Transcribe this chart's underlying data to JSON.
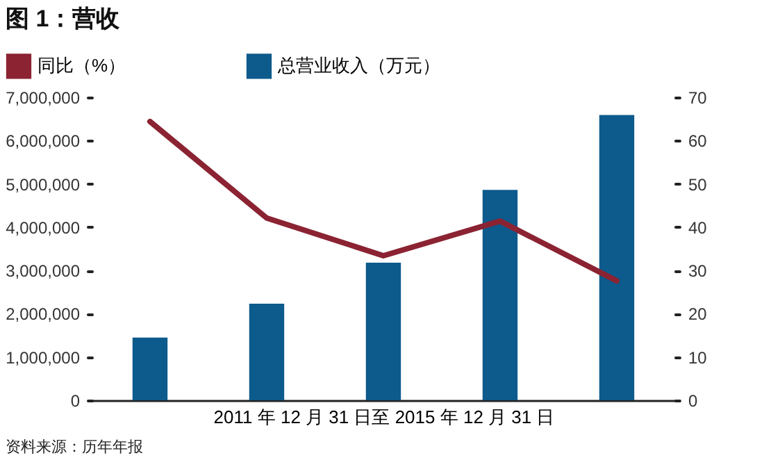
{
  "chart_data": {
    "type": "bar",
    "title": "图 1：营收",
    "xlabel": "2011 年 12 月 31 日至 2015 年 12 月 31 日",
    "categories": [
      null,
      null,
      null,
      null,
      null
    ],
    "series": [
      {
        "name": "同比（%）",
        "type": "line",
        "axis": "y2",
        "color": "#8b2332",
        "values": [
          64.4,
          42.1,
          33.4,
          41.4,
          27.6
        ]
      },
      {
        "name": "总营业收入（万元）",
        "color": "#0d5a8c",
        "values": [
          1450000,
          2230000,
          3180000,
          4860000,
          6590000
        ]
      }
    ],
    "ylim": [
      0,
      7000000
    ],
    "yticks": [
      0,
      {
        "value": 1000000,
        "label": "1,000,000"
      },
      {
        "value": 2000000,
        "label": "2,000,000"
      },
      {
        "value": 3000000,
        "label": "3,000,000"
      },
      {
        "value": 4000000,
        "label": "4,000,000"
      },
      {
        "value": 5000000,
        "label": "5,000,000"
      },
      {
        "value": 6000000,
        "label": "6,000,000"
      },
      {
        "value": 7000000,
        "label": "7,000,000"
      }
    ],
    "y2lim": [
      0,
      70
    ],
    "y2ticks": [
      0,
      10,
      20,
      30,
      40,
      50,
      60,
      70
    ],
    "legend": "top left",
    "grid": false,
    "annotations": [
      "资料来源：历年年报"
    ]
  }
}
